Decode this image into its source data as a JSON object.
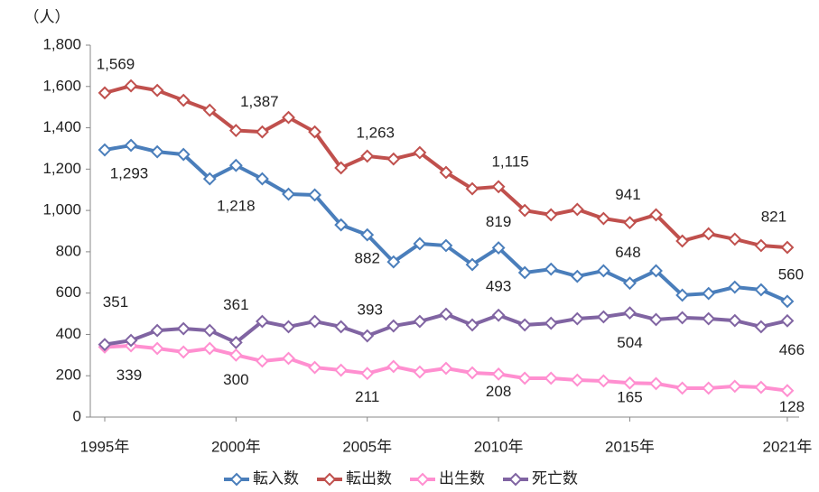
{
  "chart_data": {
    "type": "line",
    "y_label": "（人）",
    "x": [
      1995,
      1996,
      1997,
      1998,
      1999,
      2000,
      2001,
      2002,
      2003,
      2004,
      2005,
      2006,
      2007,
      2008,
      2009,
      2010,
      2011,
      2012,
      2013,
      2014,
      2015,
      2016,
      2017,
      2018,
      2019,
      2020,
      2021
    ],
    "xlim": [
      1994.45,
      2021.45
    ],
    "xticks": [
      {
        "value": 1995,
        "label": "1995年"
      },
      {
        "value": 2000,
        "label": "2000年"
      },
      {
        "value": 2005,
        "label": "2005年"
      },
      {
        "value": 2010,
        "label": "2010年"
      },
      {
        "value": 2015,
        "label": "2015年"
      },
      {
        "value": 2021,
        "label": "2021年"
      }
    ],
    "ylim": [
      0,
      1800
    ],
    "yticks": [
      0,
      {
        "value": 200,
        "label": "200"
      },
      {
        "value": 400,
        "label": "400"
      },
      {
        "value": 600,
        "label": "600"
      },
      {
        "value": 800,
        "label": "800"
      },
      {
        "value": 1000,
        "label": "1,000"
      },
      {
        "value": 1200,
        "label": "1,200"
      },
      {
        "value": 1400,
        "label": "1,400"
      },
      {
        "value": 1600,
        "label": "1,600"
      },
      {
        "value": 1800,
        "label": "1,800"
      }
    ],
    "legend": "bottom",
    "series": [
      {
        "name": "転入数",
        "color": "#4a7ebb",
        "values": [
          1293,
          1315,
          1284,
          1271,
          1153,
          1218,
          1153,
          1079,
          1075,
          930,
          882,
          751,
          839,
          830,
          738,
          819,
          699,
          716,
          681,
          708,
          648,
          708,
          590,
          598,
          629,
          616,
          560
        ],
        "value_labels": [
          "1,293",
          null,
          null,
          null,
          null,
          "1,218",
          null,
          null,
          null,
          null,
          "882",
          null,
          null,
          null,
          null,
          "819",
          null,
          null,
          null,
          null,
          "648",
          null,
          null,
          null,
          null,
          null,
          "560"
        ]
      },
      {
        "name": "転出数",
        "color": "#c0504d",
        "values": [
          1569,
          1603,
          1581,
          1533,
          1485,
          1387,
          1380,
          1450,
          1380,
          1206,
          1263,
          1249,
          1280,
          1184,
          1105,
          1115,
          1000,
          979,
          1005,
          961,
          941,
          979,
          852,
          887,
          861,
          830,
          821
        ],
        "value_labels": [
          "1,569",
          null,
          null,
          null,
          null,
          "1,387",
          null,
          null,
          null,
          null,
          "1,263",
          null,
          null,
          null,
          null,
          "1,115",
          null,
          null,
          null,
          null,
          "941",
          null,
          null,
          null,
          null,
          null,
          "821"
        ]
      },
      {
        "name": "出生数",
        "color": "#ff8fd0",
        "values": [
          339,
          345,
          332,
          315,
          332,
          300,
          271,
          284,
          240,
          227,
          211,
          245,
          218,
          236,
          214,
          208,
          188,
          188,
          179,
          175,
          165,
          162,
          140,
          140,
          149,
          144,
          128
        ],
        "value_labels": [
          "339",
          null,
          null,
          null,
          null,
          "300",
          null,
          null,
          null,
          null,
          "211",
          null,
          null,
          null,
          null,
          "208",
          null,
          null,
          null,
          null,
          "165",
          null,
          null,
          null,
          null,
          null,
          "128"
        ]
      },
      {
        "name": "死亡数",
        "color": "#8064a2",
        "values": [
          351,
          371,
          419,
          428,
          419,
          361,
          463,
          437,
          463,
          437,
          393,
          441,
          463,
          498,
          446,
          493,
          446,
          454,
          476,
          485,
          504,
          472,
          481,
          476,
          467,
          437,
          466
        ],
        "value_labels": [
          "351",
          null,
          null,
          null,
          null,
          "361",
          null,
          null,
          null,
          null,
          "393",
          null,
          null,
          null,
          null,
          "493",
          null,
          null,
          null,
          null,
          "504",
          null,
          null,
          null,
          null,
          null,
          "466"
        ]
      }
    ]
  }
}
